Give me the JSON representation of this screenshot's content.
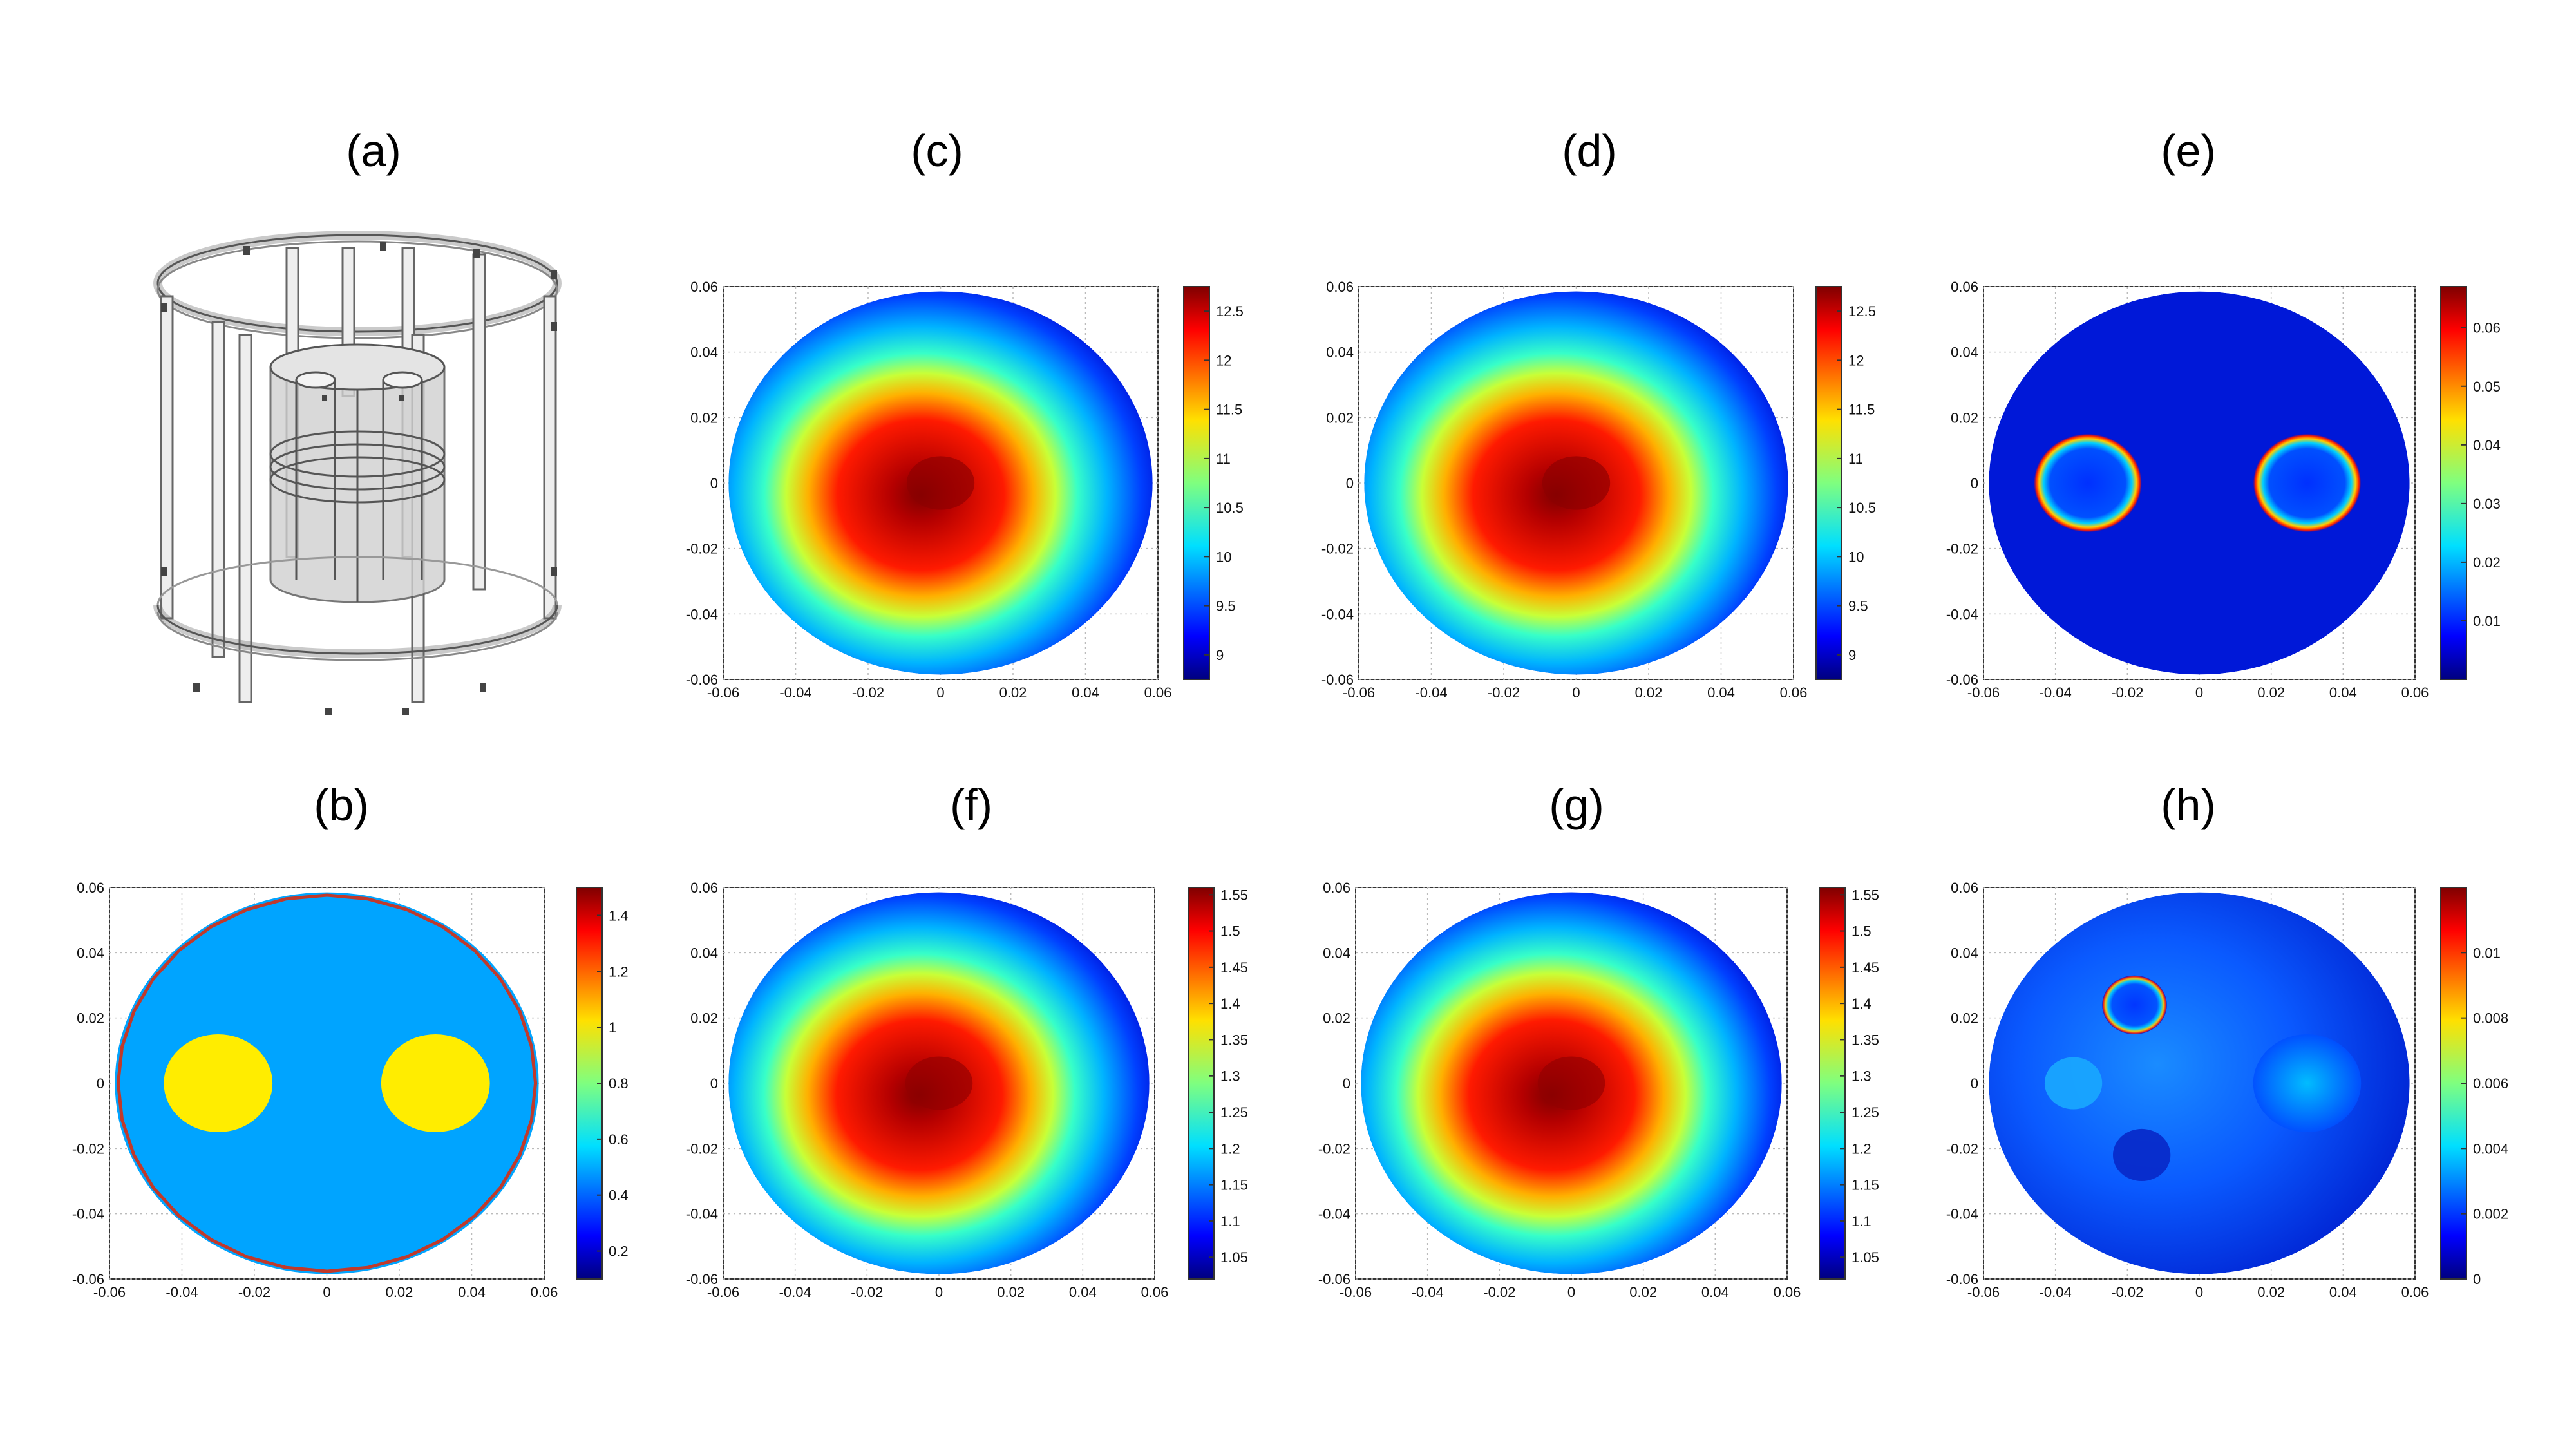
{
  "panels": [
    {
      "id": "a",
      "label": "(a)",
      "kind": "model3d"
    },
    {
      "id": "b",
      "label": "(b)",
      "kind": "phantom",
      "xticks": [
        "-0.06",
        "-0.04",
        "-0.02",
        "0",
        "0.02",
        "0.04",
        "0.06"
      ],
      "yticks": [
        "0.06",
        "0.04",
        "0.02",
        "0",
        "-0.02",
        "-0.04",
        "-0.06"
      ],
      "colorbar": {
        "min": 0.1,
        "max": 1.5,
        "ticks": [
          "1.4",
          "1.2",
          "1",
          "0.8",
          "0.6",
          "0.4",
          "0.2"
        ]
      }
    },
    {
      "id": "c",
      "label": "(c)",
      "kind": "blob",
      "xticks": [
        "-0.06",
        "-0.04",
        "-0.02",
        "0",
        "0.02",
        "0.04",
        "0.06"
      ],
      "yticks": [
        "0.06",
        "0.04",
        "0.02",
        "0",
        "-0.02",
        "-0.04",
        "-0.06"
      ],
      "colorbar": {
        "min": 8.75,
        "max": 12.75,
        "ticks": [
          "12.5",
          "12",
          "11.5",
          "11",
          "10.5",
          "10",
          "9.5",
          "9"
        ]
      }
    },
    {
      "id": "d",
      "label": "(d)",
      "kind": "blob",
      "xticks": [
        "-0.06",
        "-0.04",
        "-0.02",
        "0",
        "0.02",
        "0.04",
        "0.06"
      ],
      "yticks": [
        "0.06",
        "0.04",
        "0.02",
        "0",
        "-0.02",
        "-0.04",
        "-0.06"
      ],
      "colorbar": {
        "min": 8.75,
        "max": 12.75,
        "ticks": [
          "12.5",
          "12",
          "11.5",
          "11",
          "10.5",
          "10",
          "9.5",
          "9"
        ]
      }
    },
    {
      "id": "e",
      "label": "(e)",
      "kind": "rings",
      "xticks": [
        "-0.06",
        "-0.04",
        "-0.02",
        "0",
        "0.02",
        "0.04",
        "0.06"
      ],
      "yticks": [
        "0.06",
        "0.04",
        "0.02",
        "0",
        "-0.02",
        "-0.04",
        "-0.06"
      ],
      "colorbar": {
        "min": 0,
        "max": 0.067,
        "ticks": [
          "0.06",
          "0.05",
          "0.04",
          "0.03",
          "0.02",
          "0.01"
        ]
      }
    },
    {
      "id": "f",
      "label": "(f)",
      "kind": "blob",
      "xticks": [
        "-0.06",
        "-0.04",
        "-0.02",
        "0",
        "0.02",
        "0.04",
        "0.06"
      ],
      "yticks": [
        "0.06",
        "0.04",
        "0.02",
        "0",
        "-0.02",
        "-0.04",
        "-0.06"
      ],
      "colorbar": {
        "min": 1.02,
        "max": 1.56,
        "ticks": [
          "1.55",
          "1.5",
          "1.45",
          "1.4",
          "1.35",
          "1.3",
          "1.25",
          "1.2",
          "1.15",
          "1.1",
          "1.05"
        ]
      }
    },
    {
      "id": "g",
      "label": "(g)",
      "kind": "blob",
      "xticks": [
        "-0.06",
        "-0.04",
        "-0.02",
        "0",
        "0.02",
        "0.04",
        "0.06"
      ],
      "yticks": [
        "0.06",
        "0.04",
        "0.02",
        "0",
        "-0.02",
        "-0.04",
        "-0.06"
      ],
      "colorbar": {
        "min": 1.02,
        "max": 1.56,
        "ticks": [
          "1.55",
          "1.5",
          "1.45",
          "1.4",
          "1.35",
          "1.3",
          "1.25",
          "1.2",
          "1.15",
          "1.1",
          "1.05"
        ]
      }
    },
    {
      "id": "h",
      "label": "(h)",
      "kind": "error",
      "xticks": [
        "-0.06",
        "-0.04",
        "-0.02",
        "0",
        "0.02",
        "0.04",
        "0.06"
      ],
      "yticks": [
        "0.06",
        "0.04",
        "0.02",
        "0",
        "-0.02",
        "-0.04",
        "-0.06"
      ],
      "colorbar": {
        "min": 0,
        "max": 0.012,
        "ticks": [
          "0.01",
          "0.008",
          "0.006",
          "0.004",
          "0.002",
          "0"
        ]
      }
    }
  ],
  "chart_data": [
    {
      "panel": "b",
      "type": "heatmap",
      "xlim": [
        -0.06,
        0.06
      ],
      "ylim": [
        -0.06,
        0.06
      ],
      "colormap": "jet",
      "grid": true,
      "clim": [
        0.1,
        1.5
      ],
      "inclusions": [
        {
          "x": -0.03,
          "y": 0,
          "r": 0.015,
          "value": 1.0
        },
        {
          "x": 0.03,
          "y": 0,
          "r": 0.015,
          "value": 1.0
        }
      ],
      "background_value": 0.5,
      "boundary_outline": "red"
    },
    {
      "panel": "c",
      "type": "heatmap",
      "xlim": [
        -0.06,
        0.06
      ],
      "ylim": [
        -0.06,
        0.06
      ],
      "colormap": "jet",
      "grid": true,
      "clim": [
        8.75,
        12.75
      ],
      "peak": {
        "x": 0,
        "y": 0,
        "value": 12.7
      }
    },
    {
      "panel": "d",
      "type": "heatmap",
      "xlim": [
        -0.06,
        0.06
      ],
      "ylim": [
        -0.06,
        0.06
      ],
      "colormap": "jet",
      "grid": true,
      "clim": [
        8.75,
        12.75
      ],
      "peak": {
        "x": 0,
        "y": 0,
        "value": 12.7
      }
    },
    {
      "panel": "e",
      "type": "heatmap",
      "xlim": [
        -0.06,
        0.06
      ],
      "ylim": [
        -0.06,
        0.06
      ],
      "colormap": "jet",
      "grid": true,
      "clim": [
        0,
        0.067
      ],
      "rings": [
        {
          "x": -0.031,
          "y": 0,
          "r": 0.015
        },
        {
          "x": 0.03,
          "y": 0,
          "r": 0.015
        }
      ]
    },
    {
      "panel": "f",
      "type": "heatmap",
      "xlim": [
        -0.06,
        0.06
      ],
      "ylim": [
        -0.06,
        0.06
      ],
      "colormap": "jet",
      "grid": true,
      "clim": [
        1.02,
        1.56
      ],
      "peak": {
        "x": 0,
        "y": 0,
        "value": 1.55
      }
    },
    {
      "panel": "g",
      "type": "heatmap",
      "xlim": [
        -0.06,
        0.06
      ],
      "ylim": [
        -0.06,
        0.06
      ],
      "colormap": "jet",
      "grid": true,
      "clim": [
        1.02,
        1.56
      ],
      "peak": {
        "x": 0,
        "y": 0,
        "value": 1.55
      }
    },
    {
      "panel": "h",
      "type": "heatmap",
      "xlim": [
        -0.06,
        0.06
      ],
      "ylim": [
        -0.06,
        0.06
      ],
      "colormap": "jet",
      "grid": true,
      "clim": [
        0,
        0.012
      ],
      "features": [
        {
          "x": -0.018,
          "y": 0.024,
          "r": 0.009
        },
        {
          "x": -0.035,
          "y": 0,
          "r": 0.008
        },
        {
          "x": 0.03,
          "y": 0,
          "r": 0.015
        },
        {
          "x": -0.016,
          "y": -0.022,
          "r": 0.008
        }
      ]
    }
  ]
}
